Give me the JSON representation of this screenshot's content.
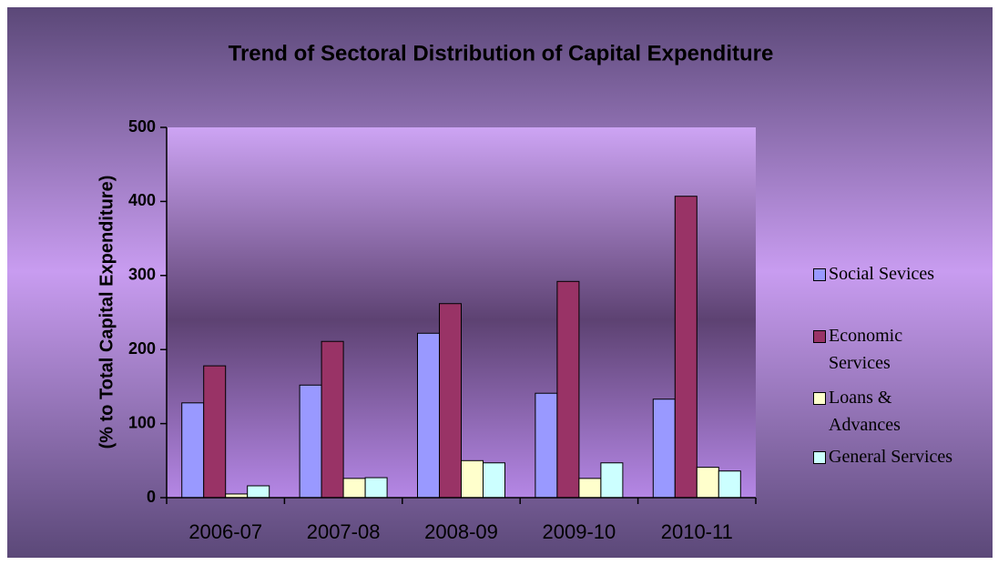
{
  "chart_data": {
    "type": "bar",
    "title": "Trend of Sectoral Distribution of Capital Expenditure",
    "y_label": "(% to Total Capital Expenditure)",
    "categories": [
      "2006-07",
      "2007-08",
      "2008-09",
      "2009-10",
      "2010-11"
    ],
    "series": [
      {
        "name": "Social Sevices",
        "color": "#9999ff",
        "values": [
          128,
          152,
          222,
          141,
          133
        ]
      },
      {
        "name": "Economic Services",
        "color": "#993366",
        "values": [
          178,
          211,
          262,
          292,
          407
        ]
      },
      {
        "name": "Loans & Advances",
        "color": "#ffffcc",
        "values": [
          5,
          26,
          50,
          26,
          41
        ]
      },
      {
        "name": "General Services",
        "color": "#ccffff",
        "values": [
          16,
          27,
          47,
          47,
          36
        ]
      }
    ],
    "ylim": [
      0,
      500
    ],
    "yticks": [
      0,
      100,
      200,
      300,
      400,
      500
    ],
    "grid": false,
    "legend": "right"
  }
}
